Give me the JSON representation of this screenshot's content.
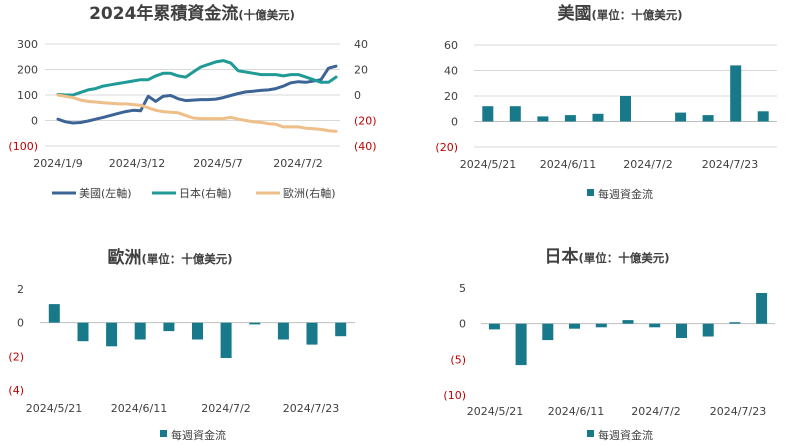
{
  "colors": {
    "us": "#3c6494",
    "jp": "#1f9a96",
    "eu": "#eebf88",
    "bar": "#17798a",
    "neg": "#c00000",
    "text": "#404040",
    "grid": "#d9d9d9"
  },
  "chart_data": [
    {
      "id": "cumulative",
      "type": "line",
      "title": "2024年累積資金流",
      "subtitle": "(十億美元)",
      "x_ticks": [
        "2024/1/9",
        "2024/3/12",
        "2024/5/7",
        "2024/7/2"
      ],
      "left_axis": {
        "ylim": [
          -100,
          300
        ],
        "ticks": [
          "300",
          "200",
          "100",
          "0",
          "(100)"
        ]
      },
      "right_axis": {
        "ylim": [
          -40,
          40
        ],
        "ticks": [
          "40",
          "20",
          "0",
          "(20)",
          "(40)"
        ]
      },
      "legend_position": "bottom",
      "series": [
        {
          "name": "美國(左軸)",
          "axis": "left",
          "color_key": "us",
          "values": [
            5,
            -5,
            -10,
            -8,
            -2,
            5,
            12,
            20,
            28,
            35,
            40,
            38,
            95,
            75,
            95,
            98,
            85,
            78,
            80,
            82,
            82,
            84,
            90,
            98,
            106,
            112,
            115,
            118,
            120,
            125,
            135,
            148,
            152,
            150,
            155,
            160,
            205,
            213
          ]
        },
        {
          "name": "日本(右軸)",
          "axis": "right",
          "color_key": "jp",
          "values": [
            0.5,
            0,
            0,
            2,
            4,
            5,
            7,
            8,
            9,
            10,
            11,
            12,
            12,
            15,
            17,
            17,
            15,
            14,
            18,
            22,
            24,
            26,
            27,
            25,
            19,
            18,
            17,
            16,
            16,
            16,
            15,
            16,
            16,
            14,
            12,
            10,
            10,
            14
          ]
        },
        {
          "name": "歐洲(右軸)",
          "axis": "right",
          "color_key": "eu",
          "values": [
            0,
            -1,
            -2,
            -4,
            -5,
            -5.5,
            -6,
            -6.5,
            -7,
            -7,
            -7.5,
            -8,
            -10,
            -12,
            -13,
            -13.5,
            -14,
            -16,
            -18,
            -18.5,
            -18.5,
            -18.5,
            -18.5,
            -17.5,
            -19,
            -20,
            -21,
            -21.5,
            -22.5,
            -23,
            -25,
            -25,
            -25,
            -26,
            -26.5,
            -27,
            -28,
            -28.5
          ]
        }
      ]
    },
    {
      "id": "us-weekly",
      "type": "bar",
      "title": "美國",
      "subtitle": "(單位：十億美元)",
      "x_ticks": [
        "2024/5/21",
        "2024/6/11",
        "2024/7/2",
        "2024/7/23"
      ],
      "y_ticks": [
        "60",
        "40",
        "20",
        "0",
        "(20)"
      ],
      "ylim": [
        -20,
        60
      ],
      "legend": "每週資金流",
      "values": [
        12,
        12,
        4,
        5,
        6,
        20,
        0,
        7,
        5,
        44,
        8
      ]
    },
    {
      "id": "eu-weekly",
      "type": "bar",
      "title": "歐洲",
      "subtitle": "(單位：十億美元)",
      "x_ticks": [
        "2024/5/21",
        "2024/6/11",
        "2024/7/2",
        "2024/7/23"
      ],
      "y_ticks": [
        "2",
        "0",
        "(2)",
        "(4)"
      ],
      "ylim": [
        -4,
        2
      ],
      "legend": "每週資金流",
      "values": [
        1.1,
        -1.1,
        -1.4,
        -1.0,
        -0.5,
        -1.0,
        -2.1,
        -0.1,
        -1.0,
        -1.3,
        -0.8
      ]
    },
    {
      "id": "jp-weekly",
      "type": "bar",
      "title": "日本",
      "subtitle": "(單位：十億美元)",
      "x_ticks": [
        "2024/5/21",
        "2024/6/11",
        "2024/7/2",
        "2024/7/23"
      ],
      "y_ticks": [
        "5",
        "0",
        "(5)",
        "(10)"
      ],
      "ylim": [
        -10,
        5
      ],
      "legend": "每週資金流",
      "values": [
        -0.8,
        -5.8,
        -2.3,
        -0.7,
        -0.5,
        0.5,
        -0.5,
        -2.0,
        -1.8,
        0.2,
        4.3
      ]
    }
  ]
}
